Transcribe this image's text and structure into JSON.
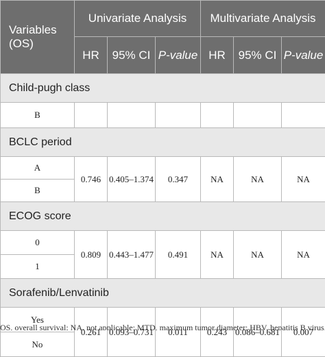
{
  "header": {
    "variables": "Variables (OS)",
    "univariate": "Univariate Analysis",
    "multivariate": "Multivariate Analysis",
    "hr": "HR",
    "ci": "95% CI",
    "pvalue": "P-value"
  },
  "sections": [
    {
      "title": "Child-pugh class",
      "levels": [
        "B"
      ],
      "uni": {
        "hr": "",
        "ci": "",
        "p": ""
      },
      "multi": {
        "hr": "",
        "ci": "",
        "p": ""
      }
    },
    {
      "title": "BCLC period",
      "levels": [
        "A",
        "B"
      ],
      "uni": {
        "hr": "0.746",
        "ci": "0.405–1.374",
        "p": "0.347"
      },
      "multi": {
        "hr": "NA",
        "ci": "NA",
        "p": "NA"
      }
    },
    {
      "title": "ECOG score",
      "levels": [
        "0",
        "1"
      ],
      "uni": {
        "hr": "0.809",
        "ci": "0.443–1.477",
        "p": "0.491"
      },
      "multi": {
        "hr": "NA",
        "ci": "NA",
        "p": "NA"
      }
    },
    {
      "title": "Sorafenib/Lenvatinib",
      "levels": [
        "Yes",
        "No"
      ],
      "uni": {
        "hr": "0.261",
        "ci": "0.093–0.731",
        "p": "0.011"
      },
      "multi": {
        "hr": "0.243",
        "ci": "0.086–0.681",
        "p": "0.007"
      }
    }
  ],
  "footnote": "OS, overall survival; NA, not applicable; MTD, maximum tumor diameter; HBV, hepatitis B virus."
}
